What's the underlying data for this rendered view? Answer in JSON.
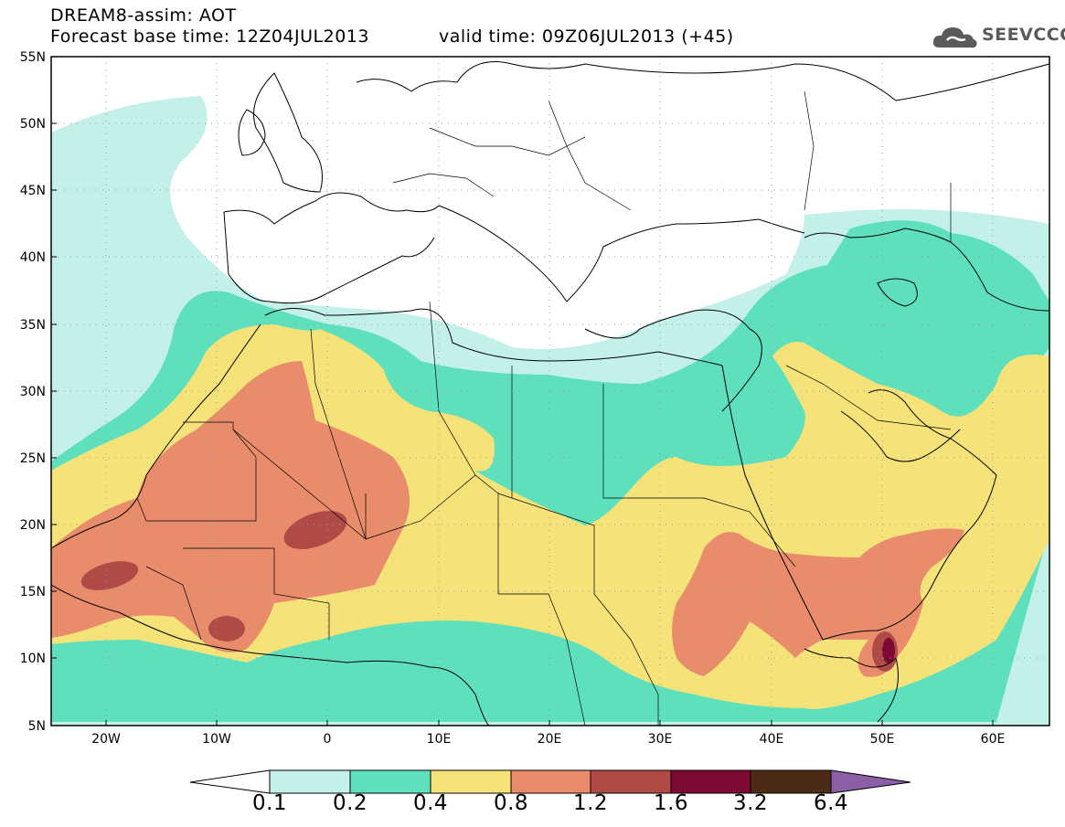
{
  "title": {
    "line1": "DREAM8-assim: AOT",
    "line2": "Forecast base time: 12Z04JUL2013",
    "valid": "valid time: 09Z06JUL2013 (+45)"
  },
  "logo": {
    "text": "SEEVCCC",
    "icon": "cloud-icon"
  },
  "map": {
    "projection": "lat-lon",
    "lon_range": [
      -25,
      65
    ],
    "lat_range": [
      5,
      55
    ],
    "lat_ticks": [
      "55N",
      "50N",
      "45N",
      "40N",
      "35N",
      "30N",
      "25N",
      "20N",
      "15N",
      "10N",
      "5N"
    ],
    "lon_ticks": [
      "20W",
      "10W",
      "0",
      "10E",
      "20E",
      "30E",
      "40E",
      "50E",
      "60E"
    ],
    "grid": true
  },
  "legend": {
    "colors": [
      "#ffffff",
      "#c4f0ea",
      "#5fe0bd",
      "#f5e278",
      "#e88c6c",
      "#b04a46",
      "#7d0a33",
      "#4b2b16",
      "#8a5fa6"
    ],
    "labels": [
      "0.1",
      "0.2",
      "0.4",
      "0.8",
      "1.2",
      "1.6",
      "3.2",
      "6.4"
    ]
  }
}
